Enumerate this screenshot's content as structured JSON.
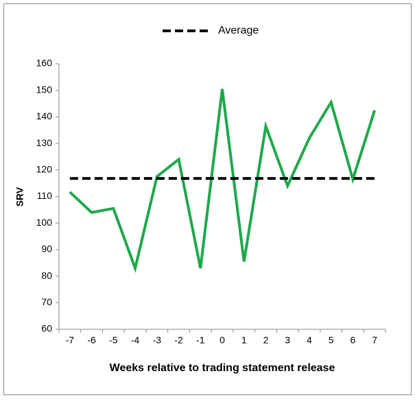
{
  "chart_data": {
    "type": "line",
    "x_label": "Weeks relative to trading statement release",
    "y_label": "SRV",
    "categories": [
      "-7",
      "-6",
      "-5",
      "-4",
      "-3",
      "-2",
      "-1",
      "0",
      "1",
      "2",
      "3",
      "4",
      "5",
      "6",
      "7"
    ],
    "series": [
      {
        "color": "#1fa84a",
        "values": [
          111.7,
          104,
          105.5,
          83,
          117.5,
          124,
          83,
          150.5,
          85.5,
          136.5,
          114,
          132,
          145.5,
          116.5,
          142.5
        ]
      },
      {
        "name": "Average",
        "color": "#000000",
        "dashed": true,
        "values": [
          116.8,
          116.8,
          116.8,
          116.8,
          116.8,
          116.8,
          116.8,
          116.8,
          116.8,
          116.8,
          116.8,
          116.8,
          116.8,
          116.8,
          116.8
        ]
      }
    ],
    "ylim": [
      60,
      160
    ],
    "yticks": [
      60,
      70,
      80,
      90,
      100,
      110,
      120,
      130,
      140,
      150,
      160
    ],
    "grid": false,
    "legend": "top"
  }
}
